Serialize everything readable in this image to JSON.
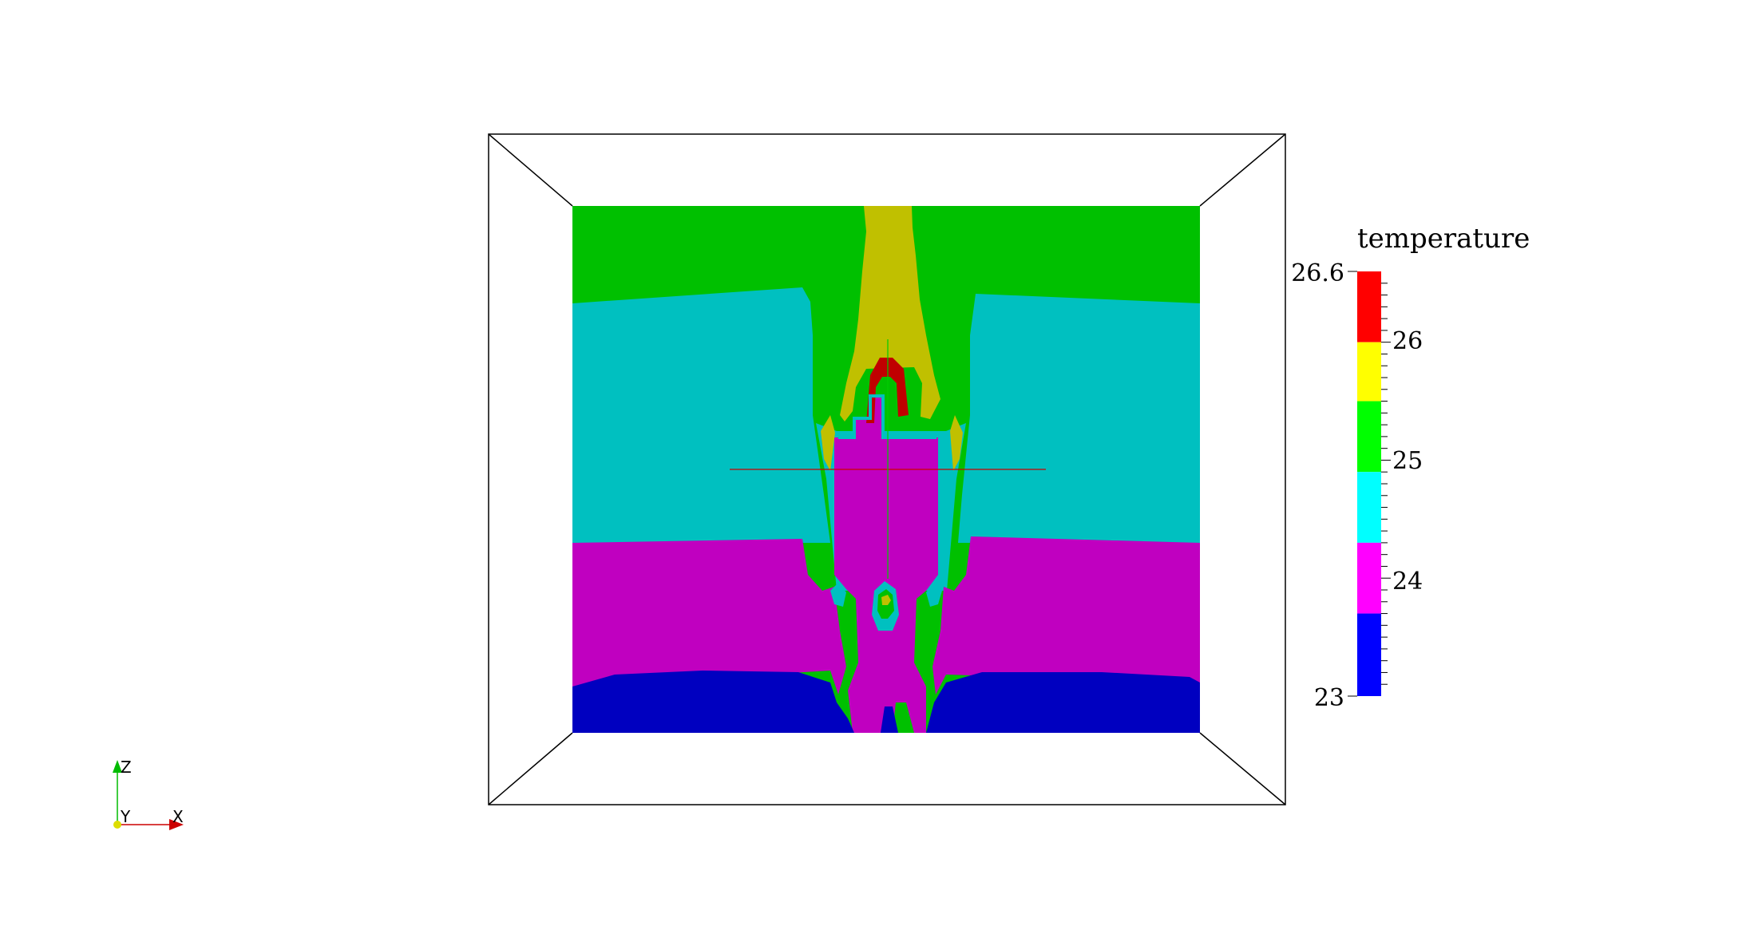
{
  "legend": {
    "title": "temperature",
    "range_min": 23,
    "range_max": 26.6,
    "labels": {
      "max": "26.6",
      "t26": "26",
      "t25": "25",
      "t24": "24",
      "min": "23"
    },
    "bands": [
      {
        "from": 26.0,
        "to": 26.6,
        "color": "#ff0000"
      },
      {
        "from": 25.5,
        "to": 26.0,
        "color": "#ffff00"
      },
      {
        "from": 24.9,
        "to": 25.5,
        "color": "#00ff00"
      },
      {
        "from": 24.3,
        "to": 24.9,
        "color": "#00ffff"
      },
      {
        "from": 23.7,
        "to": 24.3,
        "color": "#ff00ff"
      },
      {
        "from": 23.0,
        "to": 23.7,
        "color": "#0000ff"
      }
    ]
  },
  "field_colors": {
    "blue": "#0000c0",
    "magenta": "#c000c0",
    "cyan": "#00c0c0",
    "green": "#00c000",
    "yellow": "#c0c000",
    "red": "#c00000"
  },
  "orientation_axes": {
    "z": "Z",
    "y": "Y",
    "x": "X"
  }
}
